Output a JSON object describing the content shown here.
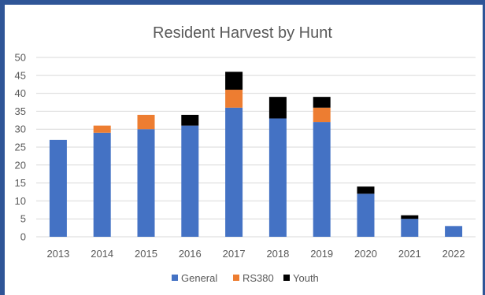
{
  "chart_data": {
    "type": "bar",
    "stacked": true,
    "title": "Resident Harvest by Hunt",
    "categories": [
      "2013",
      "2014",
      "2015",
      "2016",
      "2017",
      "2018",
      "2019",
      "2020",
      "2021",
      "2022"
    ],
    "series": [
      {
        "name": "General",
        "color": "#4472c4",
        "values": [
          27,
          29,
          30,
          31,
          36,
          33,
          32,
          12,
          5,
          3
        ]
      },
      {
        "name": "RS380",
        "color": "#ed7d31",
        "values": [
          0,
          2,
          4,
          0,
          5,
          0,
          4,
          0,
          0,
          0
        ]
      },
      {
        "name": "Youth",
        "color": "#000000",
        "values": [
          0,
          0,
          0,
          3,
          5,
          6,
          3,
          2,
          1,
          0
        ]
      }
    ],
    "ylim": [
      0,
      50
    ],
    "yticks": [
      0,
      5,
      10,
      15,
      20,
      25,
      30,
      35,
      40,
      45,
      50
    ],
    "grid": true,
    "legend_position": "bottom"
  },
  "colors": {
    "frame": "#2f5597",
    "gridline": "#d9d9d9",
    "text": "#595959"
  }
}
